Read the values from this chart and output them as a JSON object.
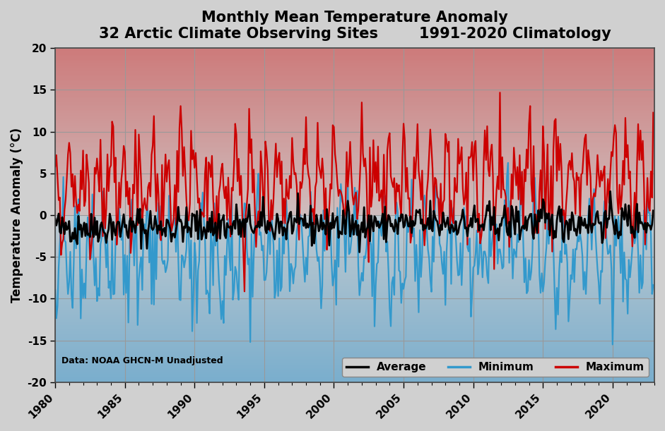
{
  "title_line1": "Monthly Mean Temperature Anomaly",
  "title_line2": "32 Arctic Climate Observing Sites        1991-2020 Climatology",
  "ylabel": "Temperature Anomaly (°C)",
  "ylim": [
    -20,
    20
  ],
  "xlim_start": 1980,
  "xlim_end": 2023.0,
  "yticks": [
    -20,
    -15,
    -10,
    -5,
    0,
    5,
    10,
    15,
    20
  ],
  "xticks": [
    1980,
    1985,
    1990,
    1995,
    2000,
    2005,
    2010,
    2015,
    2020
  ],
  "color_avg": "#000000",
  "color_min": "#3399cc",
  "color_max": "#cc0000",
  "lw_avg": 2.0,
  "lw_min": 1.6,
  "lw_max": 1.6,
  "legend_labels": [
    "Average",
    "Minimum",
    "Maximum"
  ],
  "annotation": "Data: NOAA GHCN-M Unadjusted",
  "grid_color": "#999999",
  "fig_bg": "#d0d0d0",
  "title_fontsize": 15,
  "label_fontsize": 12,
  "tick_fontsize": 11
}
